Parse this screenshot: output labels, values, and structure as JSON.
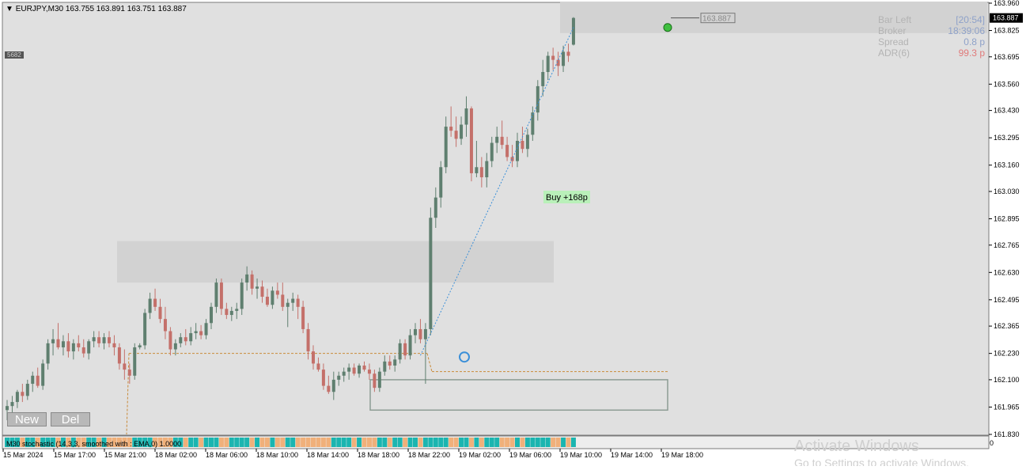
{
  "window": {
    "header": "EURJPY,M30  163.755 163.891 163.751 163.887",
    "small_tag": "5682"
  },
  "buttons": {
    "new_label": "New",
    "del_label": "Del"
  },
  "info_panel": {
    "rows": [
      {
        "label": "Bar Left",
        "value": "[20:54]",
        "label_color": "#b3b3b3",
        "value_color": "#8fa2c9"
      },
      {
        "label": "Broker",
        "value": "18:39:06",
        "label_color": "#b3b3b3",
        "value_color": "#8fa2c9"
      },
      {
        "label": "Spread",
        "value": "0.8 p",
        "label_color": "#b3b3b3",
        "value_color": "#8fa2c9"
      },
      {
        "label": "ADR(6)",
        "value": "99.3 p",
        "label_color": "#b3b3b3",
        "value_color": "#e07a7a"
      }
    ]
  },
  "trade_label": "Buy +168p",
  "price_marker": "163.887",
  "indicator_label": "M30 stochastic (14,3,3, smoothed with : EMA,0) 1.0000",
  "watermark": {
    "line1": "Activate Windows",
    "line2": "Go to Settings to activate Windows."
  },
  "colors": {
    "bull": "#5f7f6f",
    "bear": "#c4706a",
    "background": "#e0e0e0",
    "zone": "#d2d2d2",
    "price_label_bg": "#000000",
    "trend_line": "#3b8fd8",
    "level_line": "#c98a3a",
    "indicator_teal": "#1bb5b0",
    "indicator_tan": "#f0b07a"
  },
  "chart_data": {
    "type": "candlestick",
    "symbol": "EURJPY",
    "timeframe": "M30",
    "ohlc_header": {
      "open": 163.755,
      "high": 163.891,
      "low": 163.751,
      "close": 163.887
    },
    "current_price": 163.887,
    "y_ticks": [
      "163.960",
      "163.825",
      "163.695",
      "163.560",
      "163.430",
      "163.295",
      "163.160",
      "163.030",
      "162.895",
      "162.765",
      "162.630",
      "162.495",
      "162.365",
      "162.230",
      "162.100",
      "161.965",
      "161.830"
    ],
    "x_ticks": [
      "15 Mar 2024",
      "15 Mar 17:00",
      "15 Mar 21:00",
      "18 Mar 02:00",
      "18 Mar 06:00",
      "18 Mar 10:00",
      "18 Mar 14:00",
      "18 Mar 18:00",
      "18 Mar 22:00",
      "19 Mar 02:00",
      "19 Mar 06:00",
      "19 Mar 10:00",
      "19 Mar 14:00",
      "19 Mar 18:00"
    ],
    "ylim": [
      161.83,
      163.96
    ],
    "candles": [
      [
        161.95,
        162.0,
        161.9,
        161.97
      ],
      [
        161.97,
        162.02,
        161.93,
        161.99
      ],
      [
        161.99,
        162.05,
        161.96,
        162.04
      ],
      [
        162.04,
        162.08,
        161.99,
        162.02
      ],
      [
        162.02,
        162.1,
        162.0,
        162.08
      ],
      [
        162.08,
        162.14,
        162.04,
        162.12
      ],
      [
        162.12,
        162.16,
        162.06,
        162.07
      ],
      [
        162.07,
        162.2,
        162.05,
        162.18
      ],
      [
        162.18,
        162.3,
        162.15,
        162.28
      ],
      [
        162.28,
        162.35,
        162.22,
        162.3
      ],
      [
        162.3,
        162.38,
        162.25,
        162.26
      ],
      [
        162.26,
        162.32,
        162.22,
        162.29
      ],
      [
        162.29,
        162.33,
        162.21,
        162.24
      ],
      [
        162.24,
        162.3,
        162.2,
        162.28
      ],
      [
        162.28,
        162.32,
        162.24,
        162.26
      ],
      [
        162.26,
        162.3,
        162.21,
        162.23
      ],
      [
        162.23,
        162.3,
        162.2,
        162.29
      ],
      [
        162.29,
        162.34,
        162.26,
        162.31
      ],
      [
        162.31,
        162.34,
        162.26,
        162.28
      ],
      [
        162.28,
        162.33,
        162.25,
        162.31
      ],
      [
        162.31,
        162.34,
        162.26,
        162.28
      ],
      [
        162.28,
        162.32,
        162.22,
        162.26
      ],
      [
        162.26,
        162.28,
        162.15,
        162.18
      ],
      [
        162.18,
        162.25,
        162.1,
        162.15
      ],
      [
        162.15,
        162.18,
        162.08,
        162.12
      ],
      [
        162.12,
        162.28,
        162.1,
        162.26
      ],
      [
        162.26,
        162.28,
        162.25,
        162.27
      ],
      [
        162.27,
        162.45,
        162.25,
        162.43
      ],
      [
        162.43,
        162.53,
        162.4,
        162.5
      ],
      [
        162.5,
        162.55,
        162.44,
        162.46
      ],
      [
        162.46,
        162.5,
        162.38,
        162.4
      ],
      [
        162.4,
        162.46,
        162.3,
        162.34
      ],
      [
        162.34,
        162.36,
        162.22,
        162.25
      ],
      [
        162.25,
        162.3,
        162.22,
        162.28
      ],
      [
        162.28,
        162.33,
        162.26,
        162.31
      ],
      [
        162.31,
        162.35,
        162.27,
        162.29
      ],
      [
        162.29,
        162.36,
        162.27,
        162.33
      ],
      [
        162.33,
        162.38,
        162.3,
        162.34
      ],
      [
        162.34,
        162.37,
        162.3,
        162.32
      ],
      [
        162.32,
        162.4,
        162.3,
        162.38
      ],
      [
        162.38,
        162.48,
        162.35,
        162.46
      ],
      [
        162.46,
        162.6,
        162.43,
        162.58
      ],
      [
        162.58,
        162.6,
        162.42,
        162.45
      ],
      [
        162.45,
        162.48,
        162.4,
        162.42
      ],
      [
        162.42,
        162.46,
        162.39,
        162.44
      ],
      [
        162.44,
        162.48,
        162.4,
        162.45
      ],
      [
        162.45,
        162.6,
        162.42,
        162.58
      ],
      [
        162.58,
        162.66,
        162.54,
        162.62
      ],
      [
        162.62,
        162.64,
        162.52,
        162.55
      ],
      [
        162.55,
        162.6,
        162.5,
        162.56
      ],
      [
        162.56,
        162.59,
        162.48,
        162.51
      ],
      [
        162.51,
        162.55,
        162.46,
        162.47
      ],
      [
        162.47,
        162.56,
        162.45,
        162.54
      ],
      [
        162.54,
        162.58,
        162.5,
        162.52
      ],
      [
        162.52,
        162.58,
        162.44,
        162.46
      ],
      [
        162.46,
        162.5,
        162.36,
        162.48
      ],
      [
        162.48,
        162.53,
        162.44,
        162.5
      ],
      [
        162.5,
        162.52,
        162.4,
        162.46
      ],
      [
        162.46,
        162.49,
        162.33,
        162.35
      ],
      [
        162.35,
        162.38,
        162.2,
        162.24
      ],
      [
        162.24,
        162.27,
        162.15,
        162.18
      ],
      [
        162.18,
        162.21,
        162.14,
        162.15
      ],
      [
        162.15,
        162.18,
        162.05,
        162.07
      ],
      [
        162.07,
        162.12,
        162.03,
        162.04
      ],
      [
        162.04,
        162.14,
        162.0,
        162.1
      ],
      [
        162.1,
        162.14,
        162.07,
        162.12
      ],
      [
        162.12,
        162.16,
        162.09,
        162.14
      ],
      [
        162.14,
        162.18,
        162.1,
        162.16
      ],
      [
        162.16,
        162.18,
        162.12,
        162.13
      ],
      [
        162.13,
        162.18,
        162.11,
        162.17
      ],
      [
        162.17,
        162.19,
        162.14,
        162.15
      ],
      [
        162.15,
        162.18,
        162.1,
        162.13
      ],
      [
        162.13,
        162.15,
        162.04,
        162.06
      ],
      [
        162.06,
        162.16,
        162.04,
        162.14
      ],
      [
        162.14,
        162.22,
        162.12,
        162.19
      ],
      [
        162.19,
        162.22,
        162.15,
        162.17
      ],
      [
        162.17,
        162.22,
        162.14,
        162.2
      ],
      [
        162.2,
        162.3,
        162.18,
        162.28
      ],
      [
        162.28,
        162.3,
        162.2,
        162.22
      ],
      [
        162.22,
        162.35,
        162.2,
        162.32
      ],
      [
        162.32,
        162.38,
        162.28,
        162.35
      ],
      [
        162.35,
        162.4,
        162.28,
        162.3
      ],
      [
        162.3,
        162.38,
        162.08,
        162.35
      ],
      [
        162.35,
        162.95,
        162.32,
        162.9
      ],
      [
        162.9,
        163.05,
        162.85,
        163.0
      ],
      [
        163.0,
        163.18,
        162.95,
        163.15
      ],
      [
        163.15,
        163.4,
        163.12,
        163.35
      ],
      [
        163.35,
        163.45,
        163.3,
        163.33
      ],
      [
        163.33,
        163.4,
        163.25,
        163.29
      ],
      [
        163.29,
        163.4,
        163.26,
        163.36
      ],
      [
        163.36,
        163.5,
        163.3,
        163.44
      ],
      [
        163.44,
        163.45,
        163.08,
        163.12
      ],
      [
        163.12,
        163.28,
        163.1,
        163.15
      ],
      [
        163.15,
        163.2,
        163.05,
        163.1
      ],
      [
        163.1,
        163.22,
        163.05,
        163.18
      ],
      [
        163.18,
        163.3,
        163.15,
        163.27
      ],
      [
        163.27,
        163.35,
        163.22,
        163.3
      ],
      [
        163.3,
        163.38,
        163.24,
        163.26
      ],
      [
        163.26,
        163.3,
        163.18,
        163.2
      ],
      [
        163.2,
        163.26,
        163.15,
        163.18
      ],
      [
        163.18,
        163.32,
        163.15,
        163.28
      ],
      [
        163.28,
        163.35,
        163.22,
        163.24
      ],
      [
        163.24,
        163.34,
        163.2,
        163.31
      ],
      [
        163.31,
        163.45,
        163.28,
        163.42
      ],
      [
        163.42,
        163.58,
        163.38,
        163.55
      ],
      [
        163.55,
        163.68,
        163.5,
        163.62
      ],
      [
        163.62,
        163.72,
        163.58,
        163.7
      ],
      [
        163.7,
        163.74,
        163.63,
        163.68
      ],
      [
        163.68,
        163.72,
        163.6,
        163.65
      ],
      [
        163.65,
        163.75,
        163.62,
        163.72
      ],
      [
        163.72,
        163.76,
        163.67,
        163.7
      ],
      [
        163.755,
        163.891,
        163.751,
        163.887
      ]
    ],
    "zones": [
      {
        "top": 163.968,
        "bottom": 163.812
      },
      {
        "top": 162.785,
        "bottom": 162.58
      }
    ],
    "range_box": {
      "top": 162.1,
      "bottom": 161.95
    },
    "level_lines": [
      162.23,
      162.14
    ],
    "trend_line": {
      "from": 162.22,
      "to": 163.84
    }
  }
}
